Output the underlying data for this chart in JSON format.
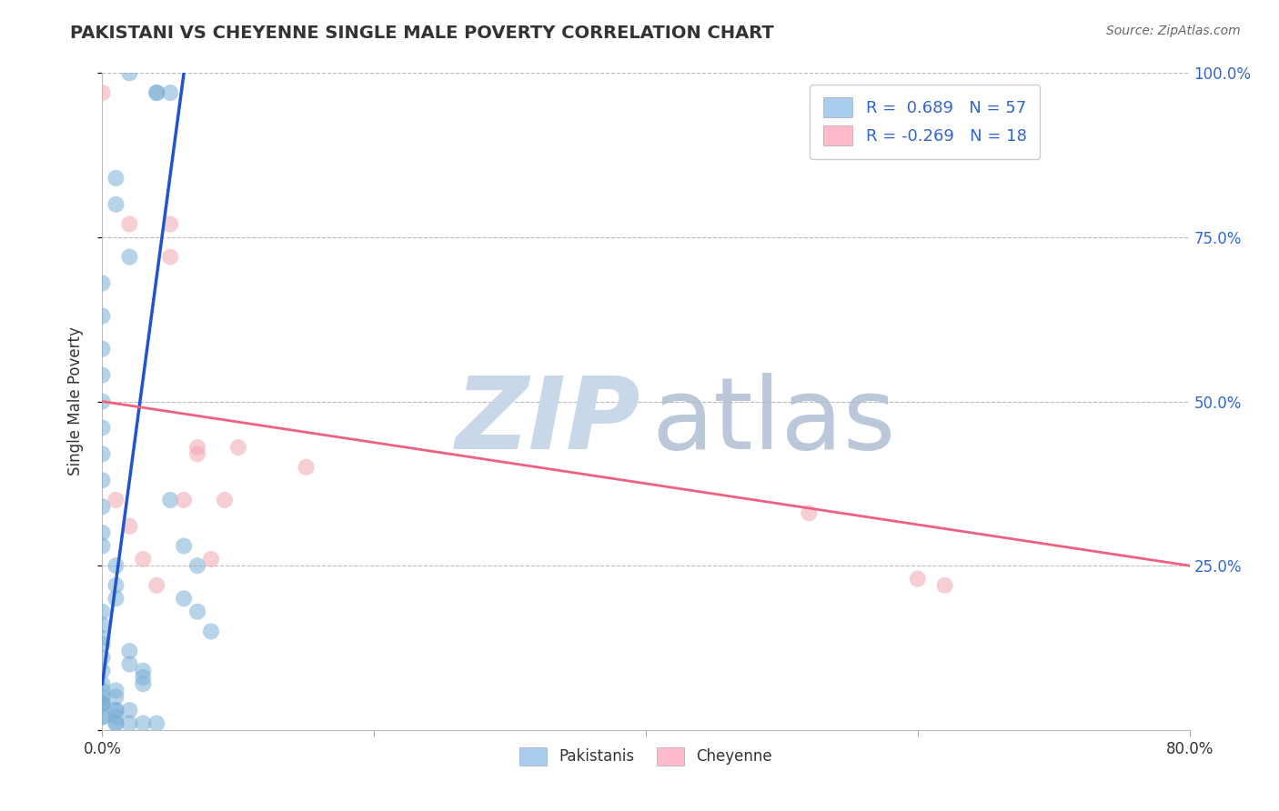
{
  "title": "PAKISTANI VS CHEYENNE SINGLE MALE POVERTY CORRELATION CHART",
  "source": "Source: ZipAtlas.com",
  "ylabel": "Single Male Poverty",
  "xlim": [
    0.0,
    0.8
  ],
  "ylim": [
    0.0,
    1.0
  ],
  "xticks": [
    0.0,
    0.2,
    0.4,
    0.6,
    0.8
  ],
  "xtick_labels": [
    "0.0%",
    "",
    "",
    "",
    "80.0%"
  ],
  "yticks": [
    0.0,
    0.25,
    0.5,
    0.75,
    1.0
  ],
  "ytick_right_labels": [
    "",
    "25.0%",
    "50.0%",
    "75.0%",
    "100.0%"
  ],
  "pakistani_R": "0.689",
  "pakistani_N": "57",
  "cheyenne_R": "-0.269",
  "cheyenne_N": "18",
  "blue_color": "#7BAFD4",
  "pink_color": "#F4A7B3",
  "blue_line_color": "#2255CC",
  "pink_line_color": "#F06080",
  "legend_blue_fill": "#AACCEE",
  "legend_pink_fill": "#FFBBCC",
  "watermark_zip_color": "#C8D8E8",
  "watermark_atlas_color": "#AABBD0",
  "pakistani_x": [
    0.02,
    0.04,
    0.04,
    0.05,
    0.01,
    0.01,
    0.02,
    0.0,
    0.0,
    0.0,
    0.0,
    0.0,
    0.0,
    0.0,
    0.0,
    0.0,
    0.0,
    0.0,
    0.01,
    0.01,
    0.01,
    0.0,
    0.0,
    0.0,
    0.02,
    0.02,
    0.03,
    0.03,
    0.03,
    0.05,
    0.06,
    0.07,
    0.06,
    0.07,
    0.08,
    0.0,
    0.01,
    0.01,
    0.0,
    0.0,
    0.0,
    0.0,
    0.01,
    0.01,
    0.02,
    0.0,
    0.0,
    0.01,
    0.01,
    0.01,
    0.02,
    0.03,
    0.04,
    0.0,
    0.0,
    0.0,
    0.0
  ],
  "pakistani_y": [
    1.0,
    0.97,
    0.97,
    0.97,
    0.84,
    0.8,
    0.72,
    0.68,
    0.63,
    0.58,
    0.54,
    0.5,
    0.46,
    0.42,
    0.38,
    0.34,
    0.3,
    0.28,
    0.25,
    0.22,
    0.2,
    0.18,
    0.16,
    0.14,
    0.12,
    0.1,
    0.09,
    0.08,
    0.07,
    0.35,
    0.28,
    0.25,
    0.2,
    0.18,
    0.15,
    0.06,
    0.06,
    0.05,
    0.05,
    0.04,
    0.04,
    0.04,
    0.03,
    0.03,
    0.03,
    0.02,
    0.02,
    0.02,
    0.01,
    0.01,
    0.01,
    0.01,
    0.01,
    0.13,
    0.11,
    0.09,
    0.07
  ],
  "cheyenne_x": [
    0.0,
    0.02,
    0.05,
    0.05,
    0.07,
    0.07,
    0.1,
    0.09,
    0.15,
    0.52,
    0.6,
    0.62,
    0.01,
    0.02,
    0.03,
    0.04,
    0.06,
    0.08
  ],
  "cheyenne_y": [
    0.97,
    0.77,
    0.77,
    0.72,
    0.43,
    0.42,
    0.43,
    0.35,
    0.4,
    0.33,
    0.23,
    0.22,
    0.35,
    0.31,
    0.26,
    0.22,
    0.35,
    0.26
  ],
  "pk_line_x0": 0.0,
  "pk_line_x1": 0.06,
  "pk_line_y0": 0.07,
  "pk_line_y1": 1.0,
  "ch_line_x0": 0.0,
  "ch_line_x1": 0.8,
  "ch_line_y0": 0.5,
  "ch_line_y1": 0.25
}
